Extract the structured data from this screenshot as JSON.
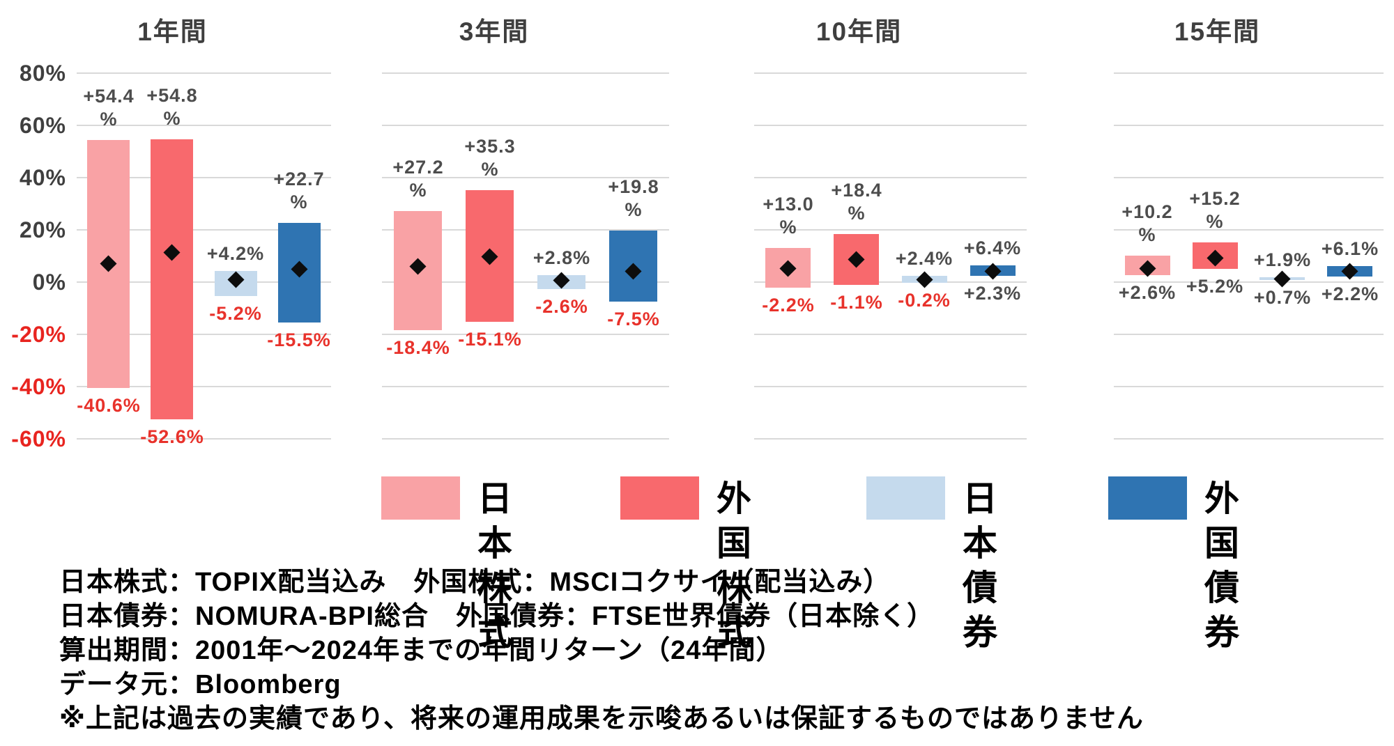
{
  "page": {
    "background": "#FFFFFF"
  },
  "colors": {
    "grid": "#D9D9D9",
    "axis_text": "#3F3F3F",
    "axis_text_negative": "#E8241F",
    "label_positive": "#4D4D4D",
    "label_negative": "#E8322B",
    "marker": "#0D0D0D",
    "legend_text": "#000000",
    "footnote_text": "#000000"
  },
  "chart_data": {
    "type": "bar",
    "subtype": "floating-range-bars-with-average-diamond-marker",
    "unit": "%",
    "ylim": [
      -60,
      80
    ],
    "grid": true,
    "legend_position": "bottom",
    "ticks": [
      "80%",
      "60%",
      "40%",
      "20%",
      "0%",
      "-20%",
      "-40%",
      "-60%"
    ],
    "tick_values": [
      80,
      60,
      40,
      20,
      0,
      -20,
      -40,
      -60
    ],
    "categories": [
      "日本株式",
      "外国株式",
      "日本債券",
      "外国債券"
    ],
    "panels": [
      {
        "title": "1年間",
        "series": [
          {
            "name": "日本株式",
            "max": 54.4,
            "min": -40.6,
            "avg_marker_est": 7.2,
            "max_label": "+54.4\n%",
            "min_label": "-40.6%"
          },
          {
            "name": "外国株式",
            "max": 54.8,
            "min": -52.6,
            "avg_marker_est": 11.5,
            "max_label": "+54.8\n%",
            "min_label": "-52.6%"
          },
          {
            "name": "日本債券",
            "max": 4.2,
            "min": -5.2,
            "avg_marker_est": 1.0,
            "max_label": "+4.2%",
            "min_label": "-5.2%"
          },
          {
            "name": "外国債券",
            "max": 22.7,
            "min": -15.5,
            "avg_marker_est": 5.1,
            "max_label": "+22.7\n%",
            "min_label": "-15.5%"
          }
        ]
      },
      {
        "title": "3年間",
        "series": [
          {
            "name": "日本株式",
            "max": 27.2,
            "min": -18.4,
            "avg_marker_est": 6.1,
            "max_label": "+27.2\n%",
            "min_label": "-18.4%"
          },
          {
            "name": "外国株式",
            "max": 35.3,
            "min": -15.1,
            "avg_marker_est": 9.9,
            "max_label": "+35.3\n%",
            "min_label": "-15.1%"
          },
          {
            "name": "日本債券",
            "max": 2.8,
            "min": -2.6,
            "avg_marker_est": 0.9,
            "max_label": "+2.8%",
            "min_label": "-2.6%"
          },
          {
            "name": "外国債券",
            "max": 19.8,
            "min": -7.5,
            "avg_marker_est": 4.3,
            "max_label": "+19.8\n%",
            "min_label": "-7.5%"
          }
        ]
      },
      {
        "title": "10年間",
        "series": [
          {
            "name": "日本株式",
            "max": 13.0,
            "min": -2.2,
            "avg_marker_est": 5.3,
            "max_label": "+13.0\n%",
            "min_label": "-2.2%"
          },
          {
            "name": "外国株式",
            "max": 18.4,
            "min": -1.1,
            "avg_marker_est": 8.8,
            "max_label": "+18.4\n%",
            "min_label": "-1.1%"
          },
          {
            "name": "日本債券",
            "max": 2.4,
            "min": -0.2,
            "avg_marker_est": 1.2,
            "max_label": "+2.4%",
            "min_label": "-0.2%"
          },
          {
            "name": "外国債券",
            "max": 6.4,
            "min": 2.3,
            "avg_marker_est": 4.3,
            "max_label": "+6.4%",
            "min_label": "+2.3%"
          }
        ]
      },
      {
        "title": "15年間",
        "series": [
          {
            "name": "日本株式",
            "max": 10.2,
            "min": 2.6,
            "avg_marker_est": 5.3,
            "max_label": "+10.2\n%",
            "min_label": "+2.6%"
          },
          {
            "name": "外国株式",
            "max": 15.2,
            "min": 5.2,
            "avg_marker_est": 9.3,
            "max_label": "+15.2\n%",
            "min_label": "+5.2%"
          },
          {
            "name": "日本債券",
            "max": 1.9,
            "min": 0.7,
            "avg_marker_est": 1.4,
            "max_label": "+1.9%",
            "min_label": "+0.7%"
          },
          {
            "name": "外国債券",
            "max": 6.1,
            "min": 2.2,
            "avg_marker_est": 4.3,
            "max_label": "+6.1%",
            "min_label": "+2.2%"
          }
        ]
      }
    ]
  },
  "legend": {
    "items": [
      {
        "label": "日本株式",
        "color": "#F9A2A5"
      },
      {
        "label": "外国株式",
        "color": "#F8696D"
      },
      {
        "label": "日本債券",
        "color": "#C5DAED"
      },
      {
        "label": "外国債券",
        "color": "#2F74B2"
      }
    ]
  },
  "footnotes": {
    "lines": [
      "日本株式：TOPIX配当込み　外国株式：MSCIコクサイ（配当込み）",
      "日本債券：NOMURA-BPI総合　外国債券：FTSE世界債券（日本除く）",
      "算出期間：2001年～2024年までの年間リターン（24年間）",
      "データ元：Bloomberg",
      "※上記は過去の実績であり、将来の運用成果を示唆あるいは保証するものではありません"
    ]
  }
}
